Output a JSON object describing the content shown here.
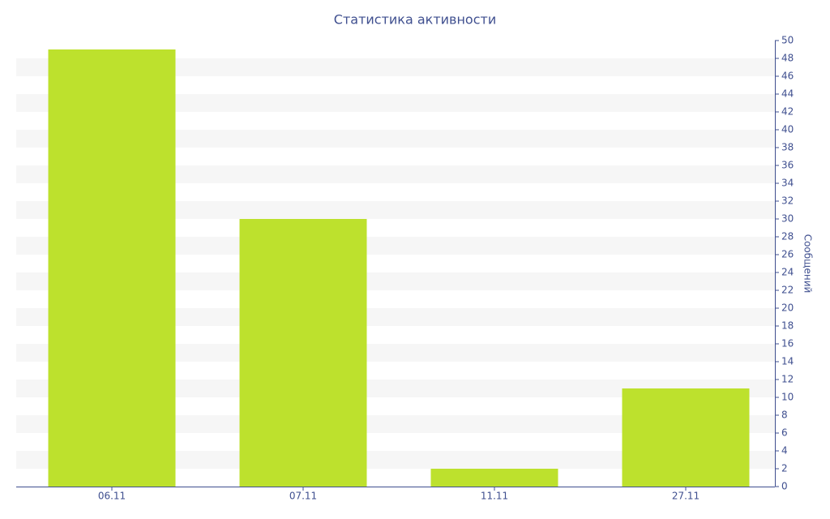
{
  "chart_data": {
    "type": "bar",
    "title": "Статистика активности",
    "y_label": "Сообщений",
    "categories": [
      "06.11",
      "07.11",
      "11.11",
      "27.11"
    ],
    "values": [
      49,
      30,
      2,
      11
    ],
    "color": "#bde12d",
    "ylim": [
      0,
      50
    ],
    "yticks": [
      0,
      2,
      4,
      6,
      8,
      10,
      12,
      14,
      16,
      18,
      20,
      22,
      24,
      26,
      28,
      30,
      32,
      34,
      36,
      38,
      40,
      42,
      44,
      46,
      48,
      50
    ],
    "y_axis_side": "right",
    "grid": true
  }
}
